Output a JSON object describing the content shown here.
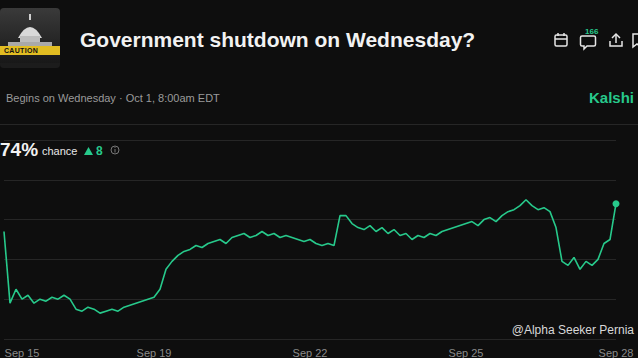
{
  "chart_data": {
    "type": "line",
    "title": "Government shutdown on Wednesday?",
    "subtitle": "Begins on Wednesday · Oct 1, 8:00am EDT",
    "categories": [
      null,
      null,
      null,
      "Sep 15",
      null,
      null,
      null,
      null,
      null,
      null,
      null,
      null,
      null,
      null,
      null,
      null,
      null,
      null,
      null,
      null,
      null,
      null,
      null,
      null,
      null,
      "Sep 19",
      null,
      null,
      null,
      null,
      null,
      null,
      null,
      null,
      null,
      null,
      null,
      null,
      null,
      null,
      null,
      null,
      null,
      null,
      null,
      null,
      null,
      null,
      null,
      null,
      null,
      "Sep 22",
      null,
      null,
      null,
      null,
      null,
      null,
      null,
      null,
      null,
      null,
      null,
      null,
      null,
      null,
      null,
      null,
      null,
      null,
      null,
      null,
      null,
      null,
      null,
      null,
      null,
      "Sep 25",
      null,
      null,
      null,
      null,
      null,
      null,
      null,
      null,
      null,
      null,
      null,
      null,
      null,
      null,
      null,
      null,
      null,
      null,
      null,
      null,
      null,
      null,
      null,
      null,
      "Sep 28"
    ],
    "values": [
      67,
      49,
      52.5,
      50,
      51,
      49,
      50,
      49.5,
      50.5,
      50,
      51,
      50,
      47.5,
      47,
      48,
      47.5,
      46.5,
      47,
      47.5,
      47,
      48,
      48.5,
      49,
      49.5,
      50,
      50.5,
      52.5,
      57.5,
      59.5,
      61,
      62,
      62.5,
      63.5,
      63,
      64,
      64.5,
      65,
      64,
      65.5,
      66,
      66.5,
      65.5,
      66,
      67,
      66,
      66.5,
      65.5,
      66,
      65.5,
      65,
      64.5,
      65,
      64,
      63.5,
      64,
      63.5,
      71,
      71,
      69,
      68,
      67.5,
      68.5,
      67,
      68,
      66.5,
      67.5,
      66,
      66.5,
      65,
      66,
      65.5,
      66.5,
      66,
      67,
      67.5,
      68,
      68.5,
      69,
      69.5,
      68.5,
      70,
      70.5,
      69.5,
      71,
      72,
      72.5,
      73.5,
      75,
      73.5,
      72.5,
      73,
      72,
      68,
      59.5,
      58.5,
      60.5,
      57.5,
      59.5,
      58.5,
      60,
      64,
      65,
      74
    ],
    "color": "#27c98b",
    "ylim": [
      40,
      90
    ],
    "yticks": [
      40,
      50,
      60,
      70,
      80,
      90
    ],
    "grid": true,
    "tick_labels": "x"
  },
  "header": {
    "image_text": "CAUTION",
    "comments": 166,
    "source": "Kalshi",
    "chance": "74%",
    "chance_label": "chance",
    "change": 8
  },
  "watermark": "@Alpha Seeker Pernia"
}
